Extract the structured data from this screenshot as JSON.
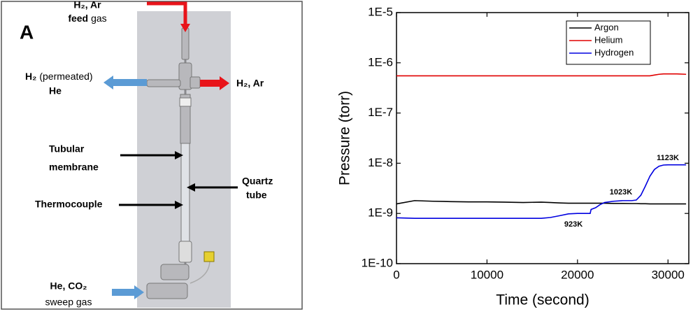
{
  "diagram": {
    "panel_label": "A",
    "feed": {
      "line1": "H₂, Ar",
      "line2_bold": "feed",
      "line2": "gas"
    },
    "permeated": {
      "gas": "H₂",
      "note": "(permeated)",
      "line2": "He"
    },
    "retentate": "H₂, Ar",
    "membrane": [
      "Tubular",
      "membrane"
    ],
    "quartz": [
      "Quartz",
      "tube"
    ],
    "thermocouple": "Thermocouple",
    "sweep": {
      "gas": "He, CO₂",
      "note": "sweep gas"
    }
  },
  "chart_data": {
    "type": "line",
    "x_label": "Time (second)",
    "y_label": "Pressure (torr)",
    "log_y": true,
    "legend": "top-right",
    "xlim": [
      0,
      32300
    ],
    "xticks": [
      0,
      10000,
      20000,
      30000
    ],
    "ylim": [
      1e-10,
      1e-05
    ],
    "yticks": [
      {
        "value": 1e-10,
        "label": "1E-10"
      },
      {
        "value": 1e-09,
        "label": "1E-9"
      },
      {
        "value": 1e-08,
        "label": "1E-8"
      },
      {
        "value": 1e-07,
        "label": "1E-7"
      },
      {
        "value": 1e-06,
        "label": "1E-6"
      },
      {
        "value": 1e-05,
        "label": "1E-5"
      }
    ],
    "x": [
      0,
      2000,
      4000,
      6000,
      8000,
      10000,
      12000,
      14000,
      16000,
      17000,
      18000,
      19000,
      20000,
      21000,
      21400,
      21500,
      22000,
      22500,
      23000,
      24000,
      25000,
      26000,
      26500,
      27000,
      27500,
      28000,
      28500,
      29000,
      29500,
      30000,
      31000,
      32000
    ],
    "series": [
      {
        "name": "Argon",
        "color": "#000000",
        "values": [
          1.55e-09,
          1.8e-09,
          1.75e-09,
          1.72e-09,
          1.7e-09,
          1.7e-09,
          1.68e-09,
          1.65e-09,
          1.68e-09,
          1.65e-09,
          1.62e-09,
          1.6e-09,
          1.6e-09,
          1.6e-09,
          1.6e-09,
          1.6e-09,
          1.6e-09,
          1.6e-09,
          1.6e-09,
          1.58e-09,
          1.58e-09,
          1.57e-09,
          1.57e-09,
          1.56e-09,
          1.56e-09,
          1.55e-09,
          1.55e-09,
          1.55e-09,
          1.55e-09,
          1.55e-09,
          1.55e-09,
          1.55e-09
        ]
      },
      {
        "name": "Helium",
        "color": "#e00000",
        "values": [
          5.5e-07,
          5.5e-07,
          5.5e-07,
          5.5e-07,
          5.5e-07,
          5.5e-07,
          5.5e-07,
          5.5e-07,
          5.5e-07,
          5.5e-07,
          5.5e-07,
          5.5e-07,
          5.5e-07,
          5.5e-07,
          5.5e-07,
          5.5e-07,
          5.5e-07,
          5.5e-07,
          5.5e-07,
          5.5e-07,
          5.5e-07,
          5.5e-07,
          5.5e-07,
          5.5e-07,
          5.5e-07,
          5.5e-07,
          5.7e-07,
          5.9e-07,
          6e-07,
          6e-07,
          6e-07,
          5.9e-07
        ]
      },
      {
        "name": "Hydrogen",
        "color": "#0000e0",
        "values": [
          8.2e-10,
          8e-10,
          8e-10,
          8e-10,
          8e-10,
          8e-10,
          8e-10,
          8e-10,
          8e-10,
          8.3e-10,
          9e-10,
          9.8e-10,
          1e-09,
          1e-09,
          1e-09,
          1.2e-09,
          1.3e-09,
          1.5e-09,
          1.65e-09,
          1.75e-09,
          1.8e-09,
          1.8e-09,
          1.85e-09,
          2.3e-09,
          3.5e-09,
          5.5e-09,
          7.5e-09,
          8.7e-09,
          9.2e-09,
          9.3e-09,
          9.3e-09,
          9.3e-09
        ]
      }
    ],
    "annotations": [
      "923K",
      "1023K",
      "1123K"
    ]
  }
}
